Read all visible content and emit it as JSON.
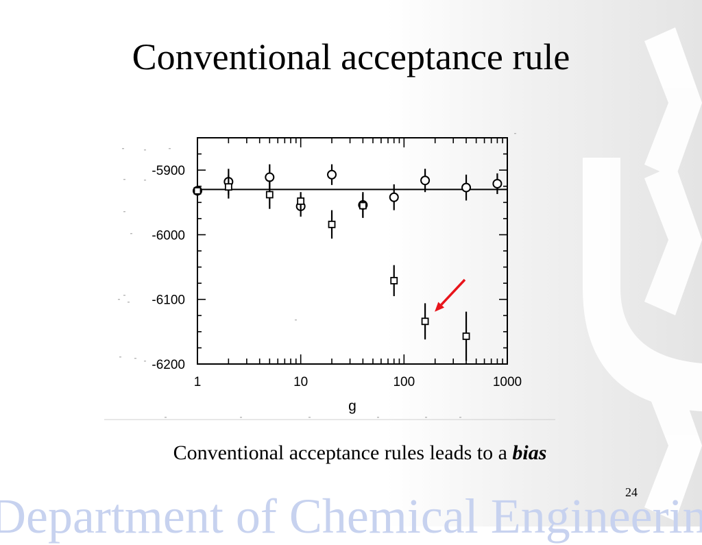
{
  "slide": {
    "title": "Conventional acceptance rule",
    "caption_text": "Conventional acceptance rules leads to a ",
    "caption_emphasis": "bias",
    "page_number": "24",
    "footer_text": "Department of Chemical Engineering"
  },
  "colors": {
    "arrow": "#e8141b",
    "footer_text": "#c7d2ef",
    "logo_chevrons": "#ffffff"
  },
  "chart_data": {
    "type": "scatter",
    "title": "",
    "xlabel": "g",
    "ylabel": "",
    "x_scale": "log",
    "xlim": [
      1,
      1000
    ],
    "ylim": [
      -6200,
      -5850
    ],
    "x_ticks": [
      {
        "value": 1,
        "label": "1"
      },
      {
        "value": 10,
        "label": "10"
      },
      {
        "value": 100,
        "label": "100"
      },
      {
        "value": 1000,
        "label": "1000"
      }
    ],
    "y_ticks": [
      {
        "value": -5900,
        "label": "-5900"
      },
      {
        "value": -6000,
        "label": "-6000"
      },
      {
        "value": -6100,
        "label": "-6100"
      },
      {
        "value": -6200,
        "label": "-6200"
      }
    ],
    "reference_line": -5930,
    "series": [
      {
        "marker": "circle",
        "points": [
          {
            "x": 1,
            "y": -5932,
            "err": 8
          },
          {
            "x": 2,
            "y": -5918,
            "err": 20
          },
          {
            "x": 5,
            "y": -5911,
            "err": 20
          },
          {
            "x": 10,
            "y": -5956,
            "err": 16
          },
          {
            "x": 20,
            "y": -5907,
            "err": 16
          },
          {
            "x": 40,
            "y": -5954,
            "err": 20
          },
          {
            "x": 80,
            "y": -5942,
            "err": 20
          },
          {
            "x": 160,
            "y": -5916,
            "err": 18
          },
          {
            "x": 400,
            "y": -5927,
            "err": 20
          },
          {
            "x": 800,
            "y": -5921,
            "err": 16
          }
        ]
      },
      {
        "marker": "square",
        "points": [
          {
            "x": 1,
            "y": -5932,
            "err": 8
          },
          {
            "x": 2,
            "y": -5926,
            "err": 18
          },
          {
            "x": 5,
            "y": -5938,
            "err": 22
          },
          {
            "x": 10,
            "y": -5948,
            "err": 14
          },
          {
            "x": 20,
            "y": -5984,
            "err": 22
          },
          {
            "x": 40,
            "y": -5955,
            "err": 18
          },
          {
            "x": 80,
            "y": -6071,
            "err": 24
          },
          {
            "x": 160,
            "y": -6134,
            "err": 28
          },
          {
            "x": 400,
            "y": -6157,
            "err": 38
          }
        ]
      }
    ],
    "annotation": {
      "type": "arrow",
      "points_to": {
        "x": 160,
        "y": -6134
      }
    }
  }
}
